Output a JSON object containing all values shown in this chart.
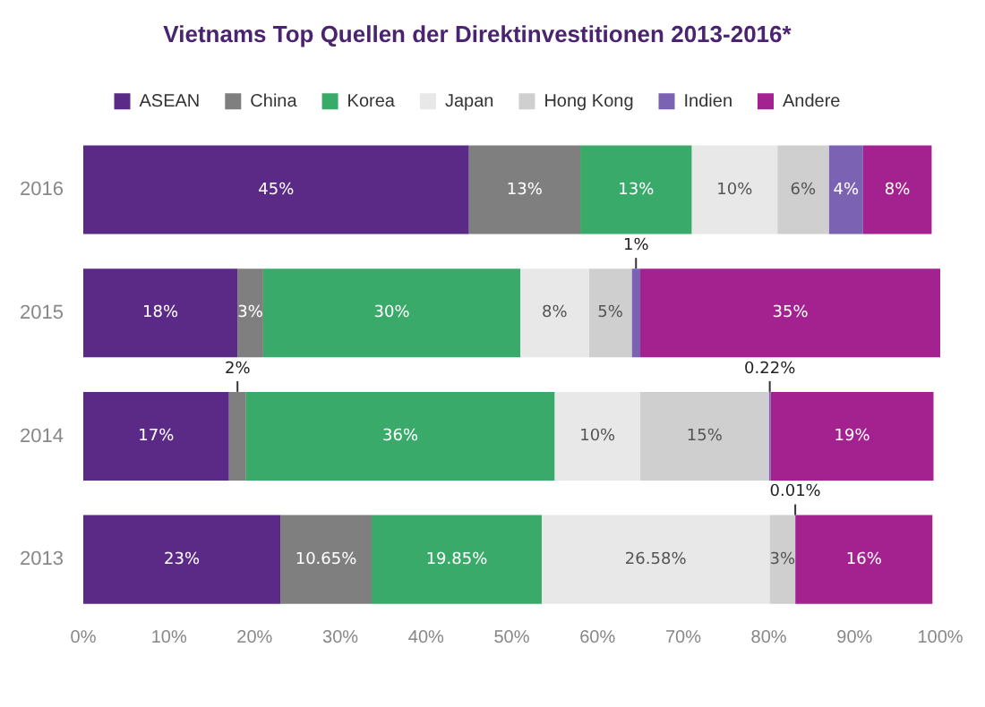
{
  "chart_data": {
    "type": "bar",
    "orientation": "horizontal",
    "stacked": true,
    "title": "Vietnams Top Quellen der Direktinvestitionen 2013-2016*",
    "categories": [
      "2016",
      "2015",
      "2014",
      "2013"
    ],
    "series": [
      {
        "name": "ASEAN",
        "color": "#5b2a86",
        "values": [
          45,
          18,
          17,
          23
        ],
        "value_labels": [
          "45%",
          "18%",
          "17%",
          "23%"
        ]
      },
      {
        "name": "China",
        "color": "#7f7f7f",
        "values": [
          13,
          3,
          2,
          10.65
        ],
        "value_labels": [
          "13%",
          "3%",
          "2%",
          "10.65%"
        ]
      },
      {
        "name": "Korea",
        "color": "#3aaa6a",
        "values": [
          13,
          30,
          36,
          19.85
        ],
        "value_labels": [
          "13%",
          "30%",
          "36%",
          "19.85%"
        ]
      },
      {
        "name": "Japan",
        "color": "#e8e8e8",
        "values": [
          10,
          8,
          10,
          26.58
        ],
        "value_labels": [
          "10%",
          "8%",
          "10%",
          "26.58%"
        ]
      },
      {
        "name": "Hong Kong",
        "color": "#cfcfcf",
        "values": [
          6,
          5,
          15,
          3
        ],
        "value_labels": [
          "6%",
          "5%",
          "15%",
          "3%"
        ]
      },
      {
        "name": "Indien",
        "color": "#7b62b3",
        "values": [
          4,
          1,
          0.22,
          0.01
        ],
        "value_labels": [
          "4%",
          "1%",
          "0.22%",
          "0.01%"
        ]
      },
      {
        "name": "Andere",
        "color": "#a3228f",
        "values": [
          8,
          35,
          19,
          16
        ],
        "value_labels": [
          "8%",
          "35%",
          "19%",
          "16%"
        ]
      }
    ],
    "xlim": [
      0,
      100
    ],
    "xticks": [
      {
        "value": 0,
        "label": "0%"
      },
      {
        "value": 10,
        "label": "10%"
      },
      {
        "value": 20,
        "label": "20%"
      },
      {
        "value": 30,
        "label": "30%"
      },
      {
        "value": 40,
        "label": "40%"
      },
      {
        "value": 50,
        "label": "50%"
      },
      {
        "value": 60,
        "label": "60%"
      },
      {
        "value": 70,
        "label": "70%"
      },
      {
        "value": 80,
        "label": "80%"
      },
      {
        "value": 90,
        "label": "90%"
      },
      {
        "value": 100,
        "label": "100%"
      }
    ],
    "legend": "top",
    "grid": false
  }
}
